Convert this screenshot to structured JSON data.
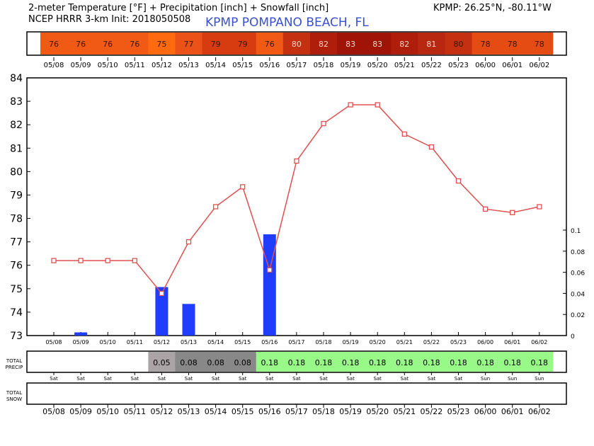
{
  "header": {
    "title": "2-meter Temperature [°F] + Precipitation [inch] + Snowfall [inch]",
    "subtitle": "NCEP HRRR 3-km Init: 2018050508",
    "station": "KPMP POMPANO BEACH, FL",
    "coords": "KPMP: 26.25°N, -80.11°W"
  },
  "chart_data": {
    "type": "line",
    "categories": [
      "05/08",
      "05/09",
      "05/10",
      "05/11",
      "05/12",
      "05/13",
      "05/14",
      "05/15",
      "05/16",
      "05/17",
      "05/18",
      "05/19",
      "05/20",
      "05/21",
      "05/22",
      "05/23",
      "06/00",
      "06/01",
      "06/02"
    ],
    "days": [
      "Sat",
      "Sat",
      "Sat",
      "Sat",
      "Sat",
      "Sat",
      "Sat",
      "Sat",
      "Sat",
      "Sat",
      "Sat",
      "Sat",
      "Sat",
      "Sat",
      "Sat",
      "Sat",
      "Sun",
      "Sun",
      "Sun"
    ],
    "series": [
      {
        "name": "2-meter Temperature [°F]",
        "type": "line",
        "color": "#e05050",
        "values": [
          76.2,
          76.2,
          76.2,
          76.2,
          74.8,
          77.0,
          78.5,
          79.35,
          75.8,
          80.45,
          82.05,
          82.85,
          82.85,
          81.6,
          81.05,
          79.6,
          78.4,
          78.25,
          78.5
        ]
      },
      {
        "name": "Precipitation [inch]",
        "type": "bar",
        "color": "#1f3cff",
        "values": [
          0,
          0.003,
          0,
          0,
          0.046,
          0.03,
          0,
          0,
          0.096,
          0,
          0,
          0,
          0,
          0,
          0,
          0,
          0,
          0,
          0
        ]
      }
    ],
    "temp_strip": [
      "76",
      "76",
      "76",
      "76",
      "75",
      "77",
      "79",
      "79",
      "76",
      "80",
      "82",
      "83",
      "83",
      "82",
      "81",
      "80",
      "78",
      "78",
      "78"
    ],
    "total_precip_label": "TOTAL PRECIP",
    "total_precip": [
      "",
      "",
      "",
      "",
      "0.05",
      "0.08",
      "0.08",
      "0.08",
      "0.18",
      "0.18",
      "0.18",
      "0.18",
      "0.18",
      "0.18",
      "0.18",
      "0.18",
      "0.18",
      "0.18",
      "0.18"
    ],
    "total_snow_label": "TOTAL SNOW",
    "ylim": [
      73,
      84
    ],
    "yticks": [
      "73",
      "74",
      "75",
      "76",
      "77",
      "78",
      "79",
      "80",
      "81",
      "82",
      "83",
      "84"
    ],
    "y2lim": [
      0,
      0.1
    ],
    "y2ticks": [
      "0",
      "0.02",
      "0.04",
      "0.06",
      "0.08",
      "0.1"
    ]
  }
}
